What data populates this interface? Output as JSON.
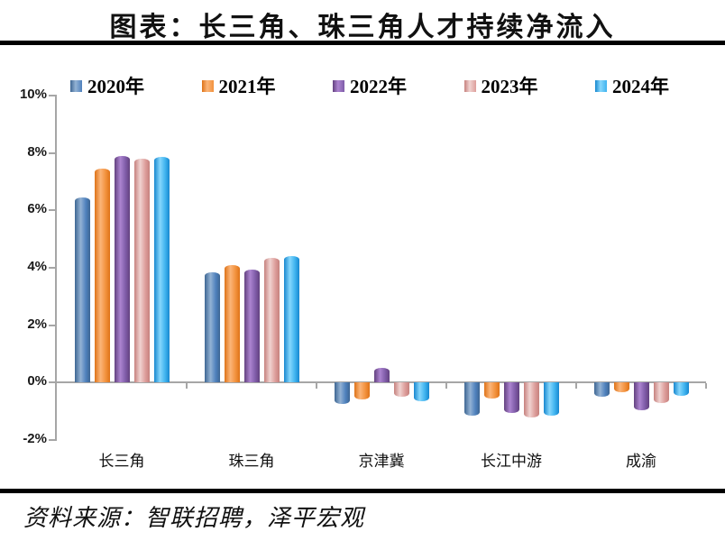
{
  "header": {
    "title": "图表：长三角、珠三角人才持续净流入"
  },
  "footer": {
    "source": "资料来源：智联招聘，泽平宏观"
  },
  "colors": {
    "axis": "#a6a6a6",
    "rule": "#000000",
    "series_2020": "#4F81BD",
    "series_2021": "#F79646",
    "series_2022": "#8064A2",
    "series_2023": "#D99694",
    "series_2024": "#41B8F0"
  },
  "chart_data": {
    "type": "bar",
    "title": "图表：长三角、珠三角人才持续净流入",
    "categories": [
      "长三角",
      "珠三角",
      "京津冀",
      "长江中游",
      "成渝"
    ],
    "series": [
      {
        "name": "2020年",
        "color": "#4F81BD",
        "dark": "#3E6693",
        "light": "#93B2D4",
        "values": [
          6.45,
          3.85,
          -0.75,
          -1.15,
          -0.5
        ]
      },
      {
        "name": "2021年",
        "color": "#F2913D",
        "dark": "#DE7318",
        "light": "#FBB579",
        "values": [
          7.45,
          4.1,
          -0.6,
          -0.55,
          -0.35
        ]
      },
      {
        "name": "2022年",
        "color": "#7F5CA8",
        "dark": "#63417F",
        "light": "#AC84D0",
        "values": [
          7.9,
          3.95,
          0.5,
          -1.05,
          -0.95
        ]
      },
      {
        "name": "2023年",
        "color": "#DD9E9B",
        "dark": "#C6817E",
        "light": "#F0D3D1",
        "values": [
          7.8,
          4.35,
          -0.5,
          -1.2,
          -0.7
        ]
      },
      {
        "name": "2024年",
        "color": "#3FB3EF",
        "dark": "#1787CF",
        "light": "#86D7FC",
        "values": [
          7.85,
          4.4,
          -0.65,
          -1.15,
          -0.45
        ]
      }
    ],
    "xlabel": "",
    "ylabel": "",
    "unit": "%",
    "y_ticks": [
      "10%",
      "8%",
      "6%",
      "4%",
      "2%",
      "0%",
      "-2%"
    ],
    "ylim": [
      -2,
      10
    ],
    "grid": false,
    "legend_position": "top"
  }
}
